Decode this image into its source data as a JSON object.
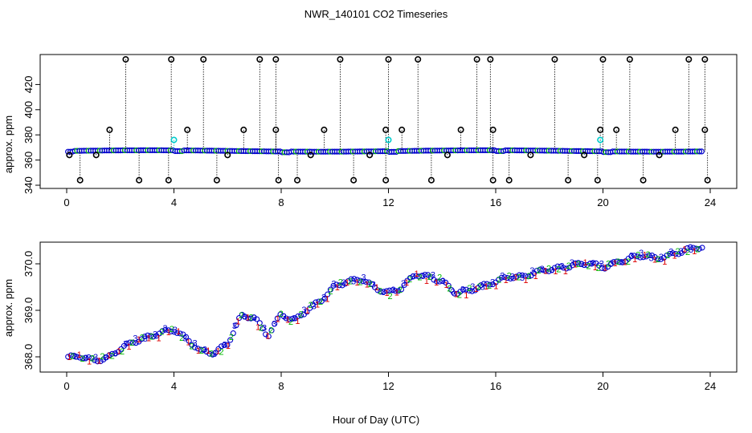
{
  "title": "NWR_140101  CO2 Timeseries",
  "xlabel": "Hour of Day (UTC)",
  "colors": {
    "flag_circle": "#000000",
    "series_blue": "#0000cc",
    "series_green": "#00bb00",
    "series_red": "#dd0000",
    "series_cyan": "#00cccc"
  },
  "chart_data": [
    {
      "type": "scatter",
      "panel": "top",
      "ylabel": "approx. ppm",
      "xlim": [
        0,
        24
      ],
      "ylim": [
        340,
        440
      ],
      "xticks": [
        "0",
        "4",
        "8",
        "12",
        "16",
        "20",
        "24"
      ],
      "yticks": [
        "340",
        "360",
        "380",
        "400",
        "420"
      ],
      "series": [
        {
          "marker": "circle-black",
          "x": [
            0.1,
            0.5,
            1.1,
            2.7,
            3.8,
            5.6,
            6.0,
            7.9,
            8.6,
            9.1,
            10.7,
            11.3,
            11.9,
            13.6,
            14.2,
            15.9,
            16.5,
            17.3,
            18.7,
            19.3,
            19.8,
            21.5,
            22.1,
            23.9
          ],
          "y": [
            364,
            344,
            364,
            344,
            344,
            344,
            364,
            344,
            344,
            364,
            344,
            364,
            344,
            344,
            364,
            344,
            344,
            364,
            344,
            364,
            344,
            344,
            364,
            344
          ]
        },
        {
          "marker": "circle-black",
          "x": [
            1.6,
            4.5,
            6.6,
            7.8,
            9.6,
            11.9,
            12.5,
            14.7,
            15.9,
            19.9,
            20.5,
            22.7,
            23.8
          ],
          "y": [
            384,
            384,
            384,
            384,
            384,
            384,
            384,
            384,
            384,
            384,
            384,
            384,
            384
          ]
        },
        {
          "marker": "circle-black",
          "x": [
            2.2,
            3.9,
            5.1,
            7.2,
            7.8,
            10.2,
            12.0,
            13.1,
            15.3,
            15.8,
            18.2,
            20.0,
            21.0,
            23.2,
            23.8
          ],
          "y": [
            440,
            440,
            440,
            440,
            440,
            440,
            440,
            440,
            440,
            440,
            440,
            440,
            440,
            440,
            440
          ]
        },
        {
          "marker": "circle-cyan",
          "x": [
            4.0,
            12.0,
            19.9
          ],
          "y": [
            376,
            376,
            376
          ]
        }
      ]
    },
    {
      "type": "scatter",
      "panel": "bottom",
      "ylabel": "approx. ppm",
      "xlim": [
        0,
        24
      ],
      "ylim": [
        367.8,
        370.3
      ],
      "xticks": [
        "0",
        "4",
        "8",
        "12",
        "16",
        "20",
        "24"
      ],
      "yticks": [
        "368.0",
        "369.0",
        "370.0"
      ],
      "series": [
        {
          "name": "1",
          "x": [
            0,
            0.5,
            1,
            1.5,
            2,
            2.5,
            3,
            3.5,
            4,
            4.5,
            5,
            5.5,
            6,
            6.5,
            7,
            7.5,
            8,
            8.5,
            9,
            9.5,
            10,
            10.5,
            11,
            11.5,
            12,
            12.5,
            13,
            13.5,
            14,
            14.5,
            15,
            15.5,
            16,
            16.5,
            17,
            17.5,
            18,
            18.5,
            19,
            19.5,
            20,
            20.5,
            21,
            21.5,
            22,
            22.5,
            23,
            23.5
          ],
          "y": [
            368.0,
            368.05,
            367.95,
            367.98,
            368.2,
            368.35,
            368.4,
            368.5,
            368.6,
            368.4,
            368.15,
            368.1,
            368.3,
            368.9,
            368.8,
            368.5,
            368.9,
            368.8,
            369.0,
            369.2,
            369.5,
            369.6,
            369.7,
            369.5,
            369.4,
            369.5,
            369.8,
            369.7,
            369.6,
            369.4,
            369.4,
            369.5,
            369.6,
            369.7,
            369.7,
            369.8,
            369.85,
            369.9,
            370.0,
            370.05,
            369.95,
            370.0,
            370.15,
            370.2,
            370.1,
            370.15,
            370.3,
            370.35
          ]
        },
        {
          "name": "2",
          "x": [
            0,
            0.5,
            1,
            1.5,
            2,
            2.5,
            3,
            3.5,
            4,
            4.5,
            5,
            5.5,
            6,
            6.5,
            7,
            7.5,
            8,
            8.5,
            9,
            9.5,
            10,
            10.5,
            11,
            11.5,
            12,
            12.5,
            13,
            13.5,
            14,
            14.5,
            15,
            15.5,
            16,
            16.5,
            17,
            17.5,
            18,
            18.5,
            19,
            19.5,
            20,
            20.5,
            21,
            21.5,
            22,
            22.5,
            23,
            23.5
          ],
          "y": [
            367.95,
            368.0,
            368.0,
            367.95,
            368.15,
            368.3,
            368.45,
            368.55,
            368.55,
            368.35,
            368.1,
            368.05,
            368.25,
            368.85,
            368.9,
            368.4,
            368.95,
            368.75,
            369.05,
            369.25,
            369.5,
            369.65,
            369.65,
            369.45,
            369.35,
            369.45,
            369.75,
            369.75,
            369.65,
            369.35,
            369.45,
            369.5,
            369.65,
            369.7,
            369.75,
            369.8,
            369.9,
            369.95,
            369.95,
            370.0,
            369.9,
            370.05,
            370.1,
            370.2,
            370.15,
            370.2,
            370.25,
            370.35
          ]
        },
        {
          "name": "3",
          "x": [
            0,
            0.5,
            1,
            1.5,
            2,
            2.5,
            3,
            3.5,
            4,
            4.5,
            5,
            5.5,
            6,
            6.5,
            7,
            7.5,
            8,
            8.5,
            9,
            9.5,
            10,
            10.5,
            11,
            11.5,
            12,
            12.5,
            13,
            13.5,
            14,
            14.5,
            15,
            15.5,
            16,
            16.5,
            17,
            17.5,
            18,
            18.5,
            19,
            19.5,
            20,
            20.5,
            21,
            21.5,
            22,
            22.5,
            23,
            23.5
          ],
          "y": [
            367.98,
            368.02,
            367.92,
            367.96,
            368.18,
            368.32,
            368.42,
            368.52,
            368.58,
            368.38,
            368.12,
            368.08,
            368.28,
            368.88,
            368.85,
            368.45,
            368.92,
            368.78,
            369.02,
            369.22,
            369.52,
            369.62,
            369.68,
            369.48,
            369.38,
            369.48,
            369.78,
            369.72,
            369.62,
            369.38,
            369.42,
            369.52,
            369.62,
            369.72,
            369.72,
            369.82,
            369.88,
            369.92,
            369.98,
            370.02,
            369.92,
            370.02,
            370.12,
            370.18,
            370.12,
            370.18,
            370.28,
            370.36
          ]
        }
      ]
    }
  ]
}
